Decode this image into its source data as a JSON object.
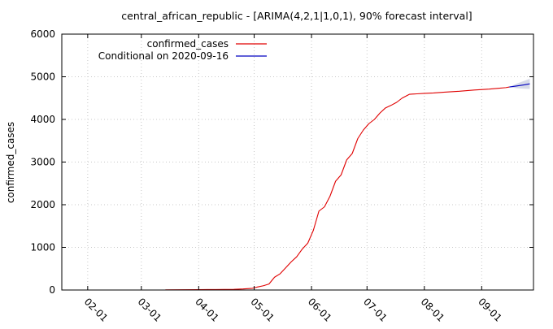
{
  "chart_data": {
    "type": "line",
    "title": "central_african_republic -  [ARIMA(4,2,1|1,0,1), 90% forecast interval]",
    "xlabel": "",
    "ylabel": "confirmed_cases",
    "ylim": [
      0,
      6000
    ],
    "yticks": [
      0,
      1000,
      2000,
      3000,
      4000,
      5000,
      6000
    ],
    "xlim": [
      "2020-01-18",
      "2020-09-29"
    ],
    "xticks": [
      "2020-02-01",
      "2020-03-01",
      "2020-04-01",
      "2020-05-01",
      "2020-06-01",
      "2020-07-01",
      "2020-08-01",
      "2020-09-01"
    ],
    "xtick_labels": [
      "02-01",
      "03-01",
      "04-01",
      "05-01",
      "06-01",
      "07-01",
      "08-01",
      "09-01"
    ],
    "grid": true,
    "legend_position": "top-left",
    "series": [
      {
        "name": "confirmed_cases",
        "color": "#e00000",
        "x": [
          "2020-03-14",
          "2020-04-01",
          "2020-04-10",
          "2020-04-20",
          "2020-04-25",
          "2020-04-30",
          "2020-05-03",
          "2020-05-06",
          "2020-05-09",
          "2020-05-12",
          "2020-05-15",
          "2020-05-18",
          "2020-05-21",
          "2020-05-24",
          "2020-05-27",
          "2020-05-30",
          "2020-06-02",
          "2020-06-05",
          "2020-06-08",
          "2020-06-11",
          "2020-06-14",
          "2020-06-17",
          "2020-06-20",
          "2020-06-23",
          "2020-06-26",
          "2020-06-29",
          "2020-07-02",
          "2020-07-05",
          "2020-07-08",
          "2020-07-11",
          "2020-07-14",
          "2020-07-17",
          "2020-07-20",
          "2020-07-24",
          "2020-07-28",
          "2020-08-01",
          "2020-08-06",
          "2020-08-12",
          "2020-08-20",
          "2020-08-28",
          "2020-09-05",
          "2020-09-10",
          "2020-09-14",
          "2020-09-16"
        ],
        "y": [
          3,
          8,
          12,
          16,
          25,
          40,
          72,
          100,
          140,
          300,
          380,
          520,
          660,
          780,
          960,
          1100,
          1400,
          1850,
          1950,
          2200,
          2550,
          2700,
          3050,
          3200,
          3550,
          3750,
          3900,
          4000,
          4150,
          4270,
          4330,
          4400,
          4500,
          4590,
          4600,
          4610,
          4620,
          4640,
          4660,
          4690,
          4710,
          4730,
          4745,
          4760
        ]
      },
      {
        "name": "Conditional on 2020-09-16",
        "color": "#0000c0",
        "x": [
          "2020-09-16",
          "2020-09-20",
          "2020-09-24",
          "2020-09-27"
        ],
        "y": [
          4760,
          4785,
          4810,
          4835
        ],
        "interval_lower": [
          4760,
          4730,
          4720,
          4715
        ],
        "interval_upper": [
          4760,
          4840,
          4905,
          4955
        ],
        "interval_label": "90% forecast interval"
      }
    ]
  }
}
